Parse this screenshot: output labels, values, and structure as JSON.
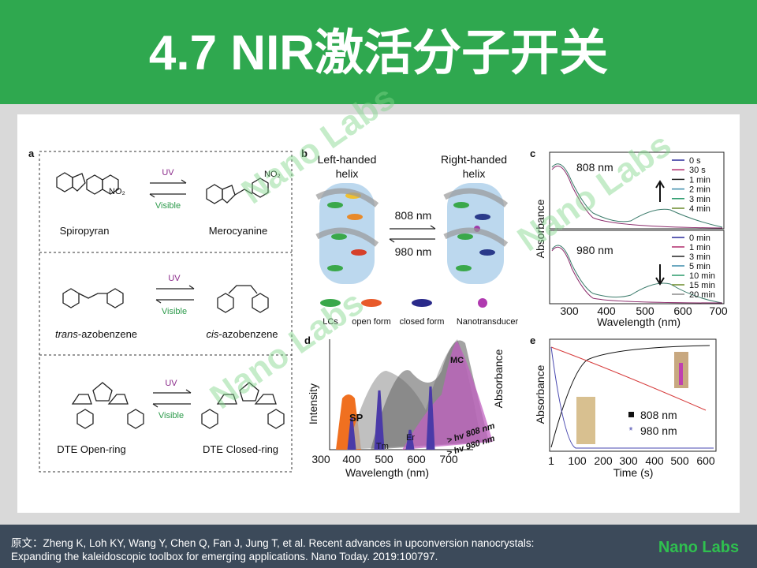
{
  "header": {
    "title": "4.7 NIR激活分子开关"
  },
  "figure": {
    "watermark": "Nano Labs",
    "panel_a": {
      "label": "a",
      "uv": "UV",
      "visible": "Visible",
      "nitro": "NO₂",
      "rows": [
        {
          "left": "Spiropyran",
          "right": "Merocyanine"
        },
        {
          "left_italic": "trans",
          "left": "-azobenzene",
          "right_italic": "cis",
          "right": "-azobenzene"
        },
        {
          "left": "DTE Open-ring",
          "right": "DTE Closed-ring"
        }
      ]
    },
    "panel_b": {
      "label": "b",
      "left": [
        "Left-handed",
        "helix"
      ],
      "right": [
        "Right-handed",
        "helix"
      ],
      "forward": "808 nm",
      "backward": "980 nm",
      "legend": [
        "LCs",
        "open form",
        "closed form",
        "Nanotransducer"
      ]
    },
    "panel_c": {
      "label": "c",
      "y_label": "Absorbance",
      "x_label": "Wavelength (nm)",
      "top_label": "808 nm",
      "bottom_label": "980 nm",
      "top_legend": [
        "0 s",
        "30 s",
        "1 min",
        "2 min",
        "3 min",
        "4 min"
      ],
      "bottom_legend": [
        "0 min",
        "1 min",
        "3 min",
        "5 min",
        "10 min",
        "15 min",
        "20 min"
      ],
      "xticks": [
        "300",
        "400",
        "500",
        "600",
        "700"
      ]
    },
    "panel_d": {
      "label": "d",
      "y_label": "Intensity",
      "y2_label": "Absorbance",
      "x_label": "Wavelength (nm)",
      "peaks": [
        "SP",
        "MC",
        "Tm",
        "Er"
      ],
      "hv": [
        "> hv 808 nm",
        "> hv 980 nm"
      ],
      "xticks": [
        "300",
        "400",
        "500",
        "600",
        "700"
      ]
    },
    "panel_e": {
      "label": "e",
      "y_label": "Absorbance",
      "x_label": "Time (s)",
      "legend": [
        "808 nm",
        "980 nm"
      ],
      "xticks": [
        "1",
        "100",
        "200",
        "300",
        "400",
        "500",
        "600"
      ]
    }
  },
  "footer": {
    "lines": [
      "原文：Zheng K, Loh KY, Wang Y, Chen Q, Fan J, Jung T, et al. Recent advances in upconversion nanocrystals:",
      "Expanding the kaleidoscopic toolbox for emerging applications. Nano Today. 2019:100797."
    ],
    "brand": "Nano Labs"
  }
}
